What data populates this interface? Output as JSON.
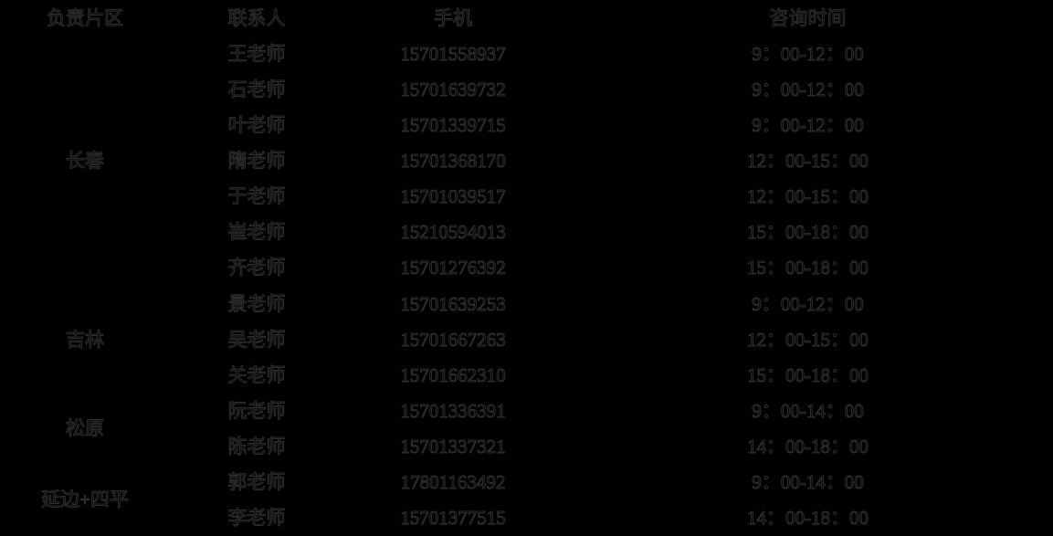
{
  "colors": {
    "background": "#000000",
    "text": "#000000",
    "text_outline": "#2e2e2e"
  },
  "table": {
    "headers": {
      "area": "负责片区",
      "contact": "联系人",
      "phone": "手机",
      "time": "咨询时间"
    },
    "groups": [
      {
        "area": "长春",
        "rows": [
          {
            "contact": "王老师",
            "phone": "15701558937",
            "time": "9：00-12：00"
          },
          {
            "contact": "石老师",
            "phone": "15701639732",
            "time": "9：00-12：00"
          },
          {
            "contact": "叶老师",
            "phone": "15701339715",
            "time": "9：00-12：00"
          },
          {
            "contact": "隋老师",
            "phone": "15701368170",
            "time": "12：00-15：00"
          },
          {
            "contact": "于老师",
            "phone": "15701039517",
            "time": "12：00-15：00"
          },
          {
            "contact": "崔老师",
            "phone": "15210594013",
            "time": "15：00-18：00"
          },
          {
            "contact": "齐老师",
            "phone": "15701276392",
            "time": "15：00-18：00"
          }
        ]
      },
      {
        "area": "吉林",
        "rows": [
          {
            "contact": "景老师",
            "phone": "15701639253",
            "time": "9：00-12：00"
          },
          {
            "contact": "吴老师",
            "phone": "15701667263",
            "time": "12：00-15：00"
          },
          {
            "contact": "关老师",
            "phone": "15701662310",
            "time": "15：00-18：00"
          }
        ]
      },
      {
        "area": "松原",
        "rows": [
          {
            "contact": "阮老师",
            "phone": "15701336391",
            "time": "9：00-14：00"
          },
          {
            "contact": "陈老师",
            "phone": "15701337321",
            "time": "14：00-18：00"
          }
        ]
      },
      {
        "area": "延边+四平",
        "rows": [
          {
            "contact": "郭老师",
            "phone": "17801163492",
            "time": "9：00-14：00"
          },
          {
            "contact": "李老师",
            "phone": "15701377515",
            "time": "14：00-18：00"
          }
        ]
      }
    ]
  }
}
